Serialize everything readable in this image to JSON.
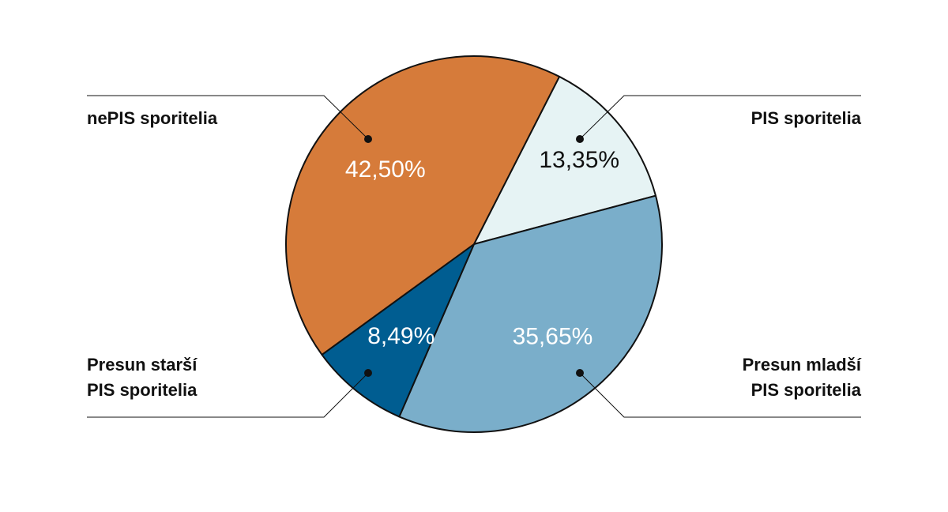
{
  "chart_data": {
    "type": "pie",
    "start_angle_deg": 27,
    "direction": "clockwise",
    "slices": [
      {
        "label": "PIS sporitelia",
        "value": 13.35,
        "display": "13,35%",
        "color": "#e6f3f4",
        "text_color": "#111111"
      },
      {
        "label_lines": [
          "Presun mladší",
          "PIS sporitelia"
        ],
        "value": 35.65,
        "display": "35,65%",
        "color": "#7aaeca",
        "text_color": "#ffffff"
      },
      {
        "label_lines": [
          "Presun starší",
          "PIS sporitelia"
        ],
        "value": 8.49,
        "display": "8,49%",
        "color": "#005d91",
        "text_color": "#ffffff"
      },
      {
        "label": "nePIS sporitelia",
        "value": 42.5,
        "display": "42,50%",
        "color": "#d67b3a",
        "text_color": "#ffffff"
      }
    ],
    "legend": "callouts"
  }
}
